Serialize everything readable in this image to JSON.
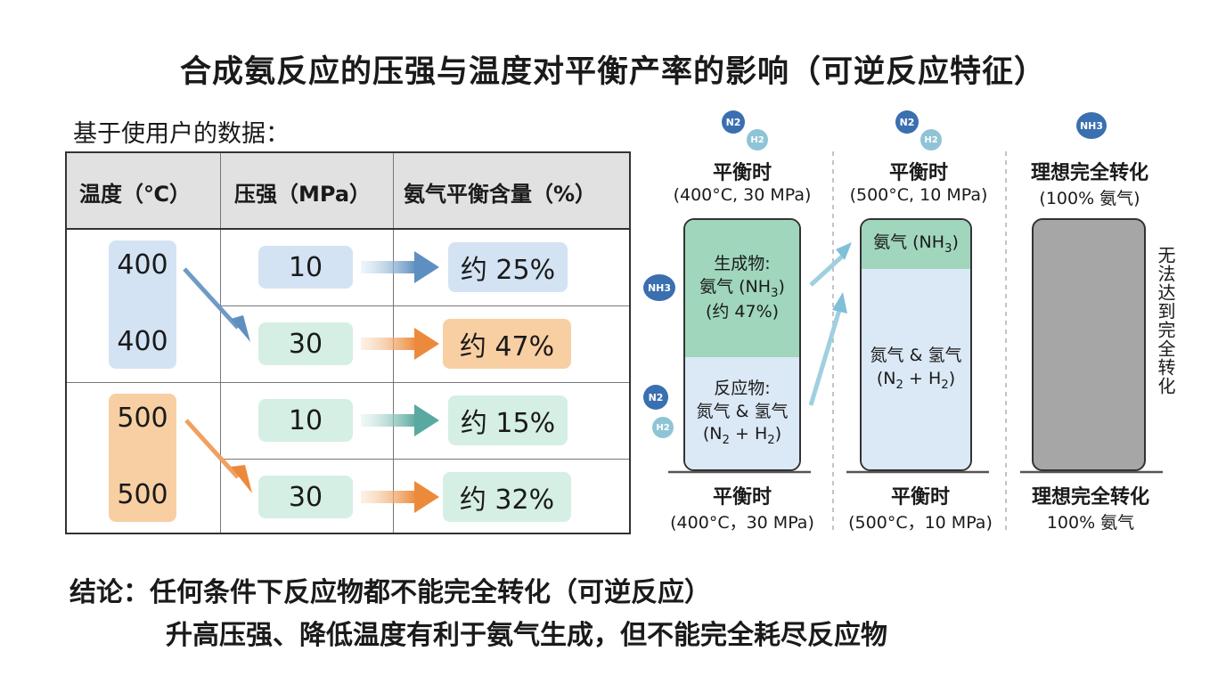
{
  "title": "合成氨反应的压强与温度对平衡产率的影响（可逆反应特征）",
  "subtitle": "基于使用户的数据：",
  "table": {
    "headers": [
      "温度（℃）",
      "压强（MPa）",
      "氨气平衡含量（%）"
    ],
    "rows": [
      {
        "temp": "400",
        "pressure": "10",
        "yield": "约 25%"
      },
      {
        "temp": "400",
        "pressure": "30",
        "yield": "约 47%"
      },
      {
        "temp": "500",
        "pressure": "10",
        "yield": "约 15%"
      },
      {
        "temp": "500",
        "pressure": "30",
        "yield": "约 32%"
      }
    ]
  },
  "diagram": {
    "bar1": {
      "top_title": "平衡时",
      "top_cond": "(400°C, 30 MPa)",
      "product_label": "生成物:",
      "product_name": "氨气 (NH",
      "product_sub": "3",
      "product_tail": ")",
      "product_amount": "(约 47%)",
      "reactant_label": "反应物:",
      "reactant_name": "氮气 & 氢气",
      "reactant_formula_a": "(N",
      "reactant_formula_b": "2",
      "reactant_formula_c": " + H",
      "reactant_formula_d": "2",
      "reactant_formula_e": ")",
      "bottom_title": "平衡时",
      "bottom_cond": "(400°C，30 MPa)"
    },
    "bar2": {
      "top_title": "平衡时",
      "top_cond": "(500°C, 10 MPa)",
      "product_name": "氨气 (NH",
      "product_sub": "3",
      "product_tail": ")",
      "reactant_name": "氮气 & 氢气",
      "reactant_formula_a": "(N",
      "reactant_formula_b": "2",
      "reactant_formula_c": " + H",
      "reactant_formula_d": "2",
      "reactant_formula_e": ")",
      "bottom_title": "平衡时",
      "bottom_cond": "(500°C，10 MPa)"
    },
    "bar3": {
      "top_title": "理想完全转化",
      "top_cond": "(100% 氨气)",
      "side_text": "无法达到完全转化",
      "bottom_title": "理想完全转化",
      "bottom_cond": "100% 氨气"
    },
    "molecules": {
      "n2": "N2",
      "h2": "H2",
      "nh3": "NH3"
    }
  },
  "conclusion": {
    "line1": "结论：任何条件下反应物都不能完全转化（可逆反应）",
    "line2": "升高压强、降低温度有利于氨气生成，但不能完全耗尽反应物"
  }
}
